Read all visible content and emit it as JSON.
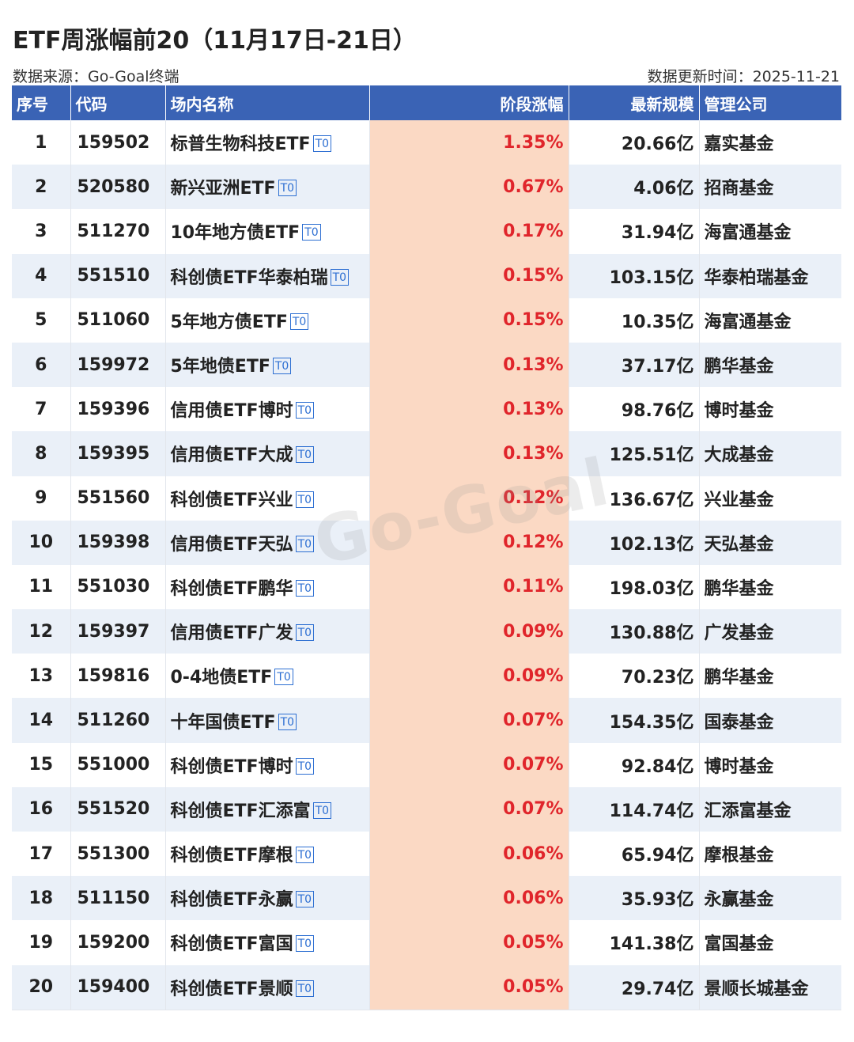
{
  "title": "ETF周涨幅前20（11月17日-21日）",
  "source": "数据来源：Go-Goal终端",
  "updated": "数据更新时间：2025-11-21",
  "watermark": "Go-Goal",
  "tag_label": "T0",
  "columns": {
    "rank": "序号",
    "code": "代码",
    "name": "场内名称",
    "change": "阶段涨幅",
    "scale": "最新规模",
    "manager": "管理公司"
  },
  "colors": {
    "header_bg": "#3a63b5",
    "change_text": "#e0252b",
    "change_bg": "#fbd9c4",
    "stripe_bg": "#eaf0f8",
    "tag": "#2d6fd2"
  },
  "rows": [
    {
      "rank": "1",
      "code": "159502",
      "name": "标普生物科技ETF",
      "change": "1.35%",
      "scale": "20.66亿",
      "manager": "嘉实基金"
    },
    {
      "rank": "2",
      "code": "520580",
      "name": "新兴亚洲ETF",
      "change": "0.67%",
      "scale": "4.06亿",
      "manager": "招商基金"
    },
    {
      "rank": "3",
      "code": "511270",
      "name": "10年地方债ETF",
      "change": "0.17%",
      "scale": "31.94亿",
      "manager": "海富通基金"
    },
    {
      "rank": "4",
      "code": "551510",
      "name": "科创债ETF华泰柏瑞",
      "change": "0.15%",
      "scale": "103.15亿",
      "manager": "华泰柏瑞基金"
    },
    {
      "rank": "5",
      "code": "511060",
      "name": "5年地方债ETF",
      "change": "0.15%",
      "scale": "10.35亿",
      "manager": "海富通基金"
    },
    {
      "rank": "6",
      "code": "159972",
      "name": "5年地债ETF",
      "change": "0.13%",
      "scale": "37.17亿",
      "manager": "鹏华基金"
    },
    {
      "rank": "7",
      "code": "159396",
      "name": "信用债ETF博时",
      "change": "0.13%",
      "scale": "98.76亿",
      "manager": "博时基金"
    },
    {
      "rank": "8",
      "code": "159395",
      "name": "信用债ETF大成",
      "change": "0.13%",
      "scale": "125.51亿",
      "manager": "大成基金"
    },
    {
      "rank": "9",
      "code": "551560",
      "name": "科创债ETF兴业",
      "change": "0.12%",
      "scale": "136.67亿",
      "manager": "兴业基金"
    },
    {
      "rank": "10",
      "code": "159398",
      "name": "信用债ETF天弘",
      "change": "0.12%",
      "scale": "102.13亿",
      "manager": "天弘基金"
    },
    {
      "rank": "11",
      "code": "551030",
      "name": "科创债ETF鹏华",
      "change": "0.11%",
      "scale": "198.03亿",
      "manager": "鹏华基金"
    },
    {
      "rank": "12",
      "code": "159397",
      "name": "信用债ETF广发",
      "change": "0.09%",
      "scale": "130.88亿",
      "manager": "广发基金"
    },
    {
      "rank": "13",
      "code": "159816",
      "name": "0-4地债ETF",
      "change": "0.09%",
      "scale": "70.23亿",
      "manager": "鹏华基金"
    },
    {
      "rank": "14",
      "code": "511260",
      "name": "十年国债ETF",
      "change": "0.07%",
      "scale": "154.35亿",
      "manager": "国泰基金"
    },
    {
      "rank": "15",
      "code": "551000",
      "name": "科创债ETF博时",
      "change": "0.07%",
      "scale": "92.84亿",
      "manager": "博时基金"
    },
    {
      "rank": "16",
      "code": "551520",
      "name": "科创债ETF汇添富",
      "change": "0.07%",
      "scale": "114.74亿",
      "manager": "汇添富基金"
    },
    {
      "rank": "17",
      "code": "551300",
      "name": "科创债ETF摩根",
      "change": "0.06%",
      "scale": "65.94亿",
      "manager": "摩根基金"
    },
    {
      "rank": "18",
      "code": "511150",
      "name": "科创债ETF永赢",
      "change": "0.06%",
      "scale": "35.93亿",
      "manager": "永赢基金"
    },
    {
      "rank": "19",
      "code": "159200",
      "name": "科创债ETF富国",
      "change": "0.05%",
      "scale": "141.38亿",
      "manager": "富国基金"
    },
    {
      "rank": "20",
      "code": "159400",
      "name": "科创债ETF景顺",
      "change": "0.05%",
      "scale": "29.74亿",
      "manager": "景顺长城基金"
    }
  ]
}
